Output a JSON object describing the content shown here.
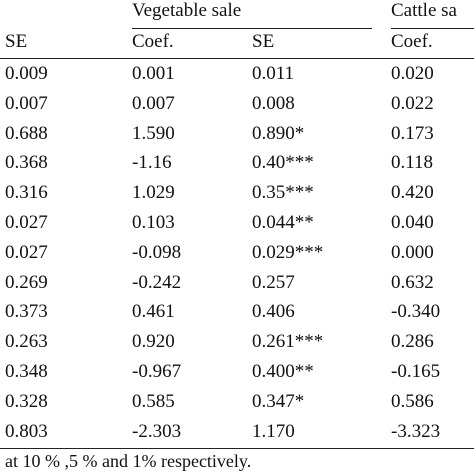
{
  "table": {
    "groups": [
      {
        "label": "Vegetable  sale"
      },
      {
        "label": "Cattle sa"
      }
    ],
    "columns": [
      "SE",
      "Coef.",
      "SE",
      "Coef."
    ],
    "rows": [
      [
        "0.009",
        "0.001",
        "0.011",
        "0.020"
      ],
      [
        "0.007",
        "0.007",
        "0.008",
        "0.022"
      ],
      [
        "0.688",
        "1.590",
        "0.890*",
        "0.173"
      ],
      [
        "0.368",
        "-1.16",
        "0.40***",
        "0.118"
      ],
      [
        "0.316",
        "1.029",
        "0.35***",
        "0.420"
      ],
      [
        "0.027",
        "0.103",
        "0.044**",
        "0.040"
      ],
      [
        "0.027",
        "-0.098",
        "0.029***",
        "0.000"
      ],
      [
        "0.269",
        "-0.242",
        "0.257",
        "0.632"
      ],
      [
        "0.373",
        "0.461",
        "0.406",
        "-0.340"
      ],
      [
        "0.263",
        "0.920",
        "0.261***",
        "0.286"
      ],
      [
        "0.348",
        "-0.967",
        "0.400**",
        "-0.165"
      ],
      [
        "0.328",
        "0.585",
        "0.347*",
        "0.586"
      ],
      [
        "0.803",
        "-2.303",
        "1.170",
        "-3.323"
      ]
    ],
    "footnote": "at 10 % ,5 % and 1% respectively."
  }
}
